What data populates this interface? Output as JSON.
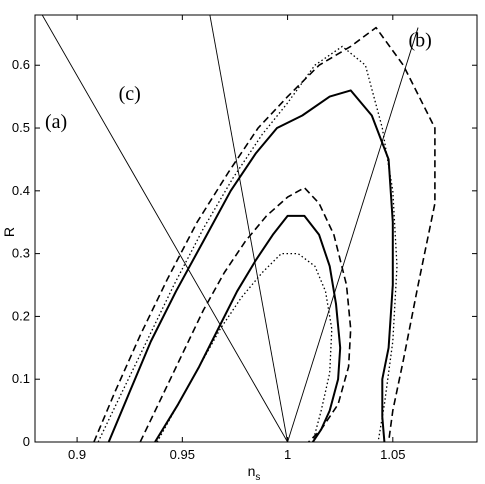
{
  "chart_data": {
    "type": "line",
    "xlabel": "n",
    "xlabel_sub": "s",
    "ylabel": "R",
    "xlim": [
      0.88,
      1.09
    ],
    "ylim": [
      0,
      0.68
    ],
    "xticks": [
      0.9,
      0.95,
      1,
      1.05
    ],
    "xtick_labels": [
      "0.9",
      "0.95",
      "1",
      "1.05"
    ],
    "yticks": [
      0,
      0.1,
      0.2,
      0.3,
      0.4,
      0.5,
      0.6
    ],
    "ytick_labels": [
      "0",
      "0.1",
      "0.2",
      "0.3",
      "0.4",
      "0.5",
      "0.6"
    ],
    "grid": false,
    "annotations": [
      {
        "text": "(a)",
        "x": 0.89,
        "y": 0.5
      },
      {
        "text": "(b)",
        "x": 1.063,
        "y": 0.63
      },
      {
        "text": "(c)",
        "x": 0.925,
        "y": 0.545
      }
    ],
    "lines": [
      {
        "id": "line-a",
        "x": [
          0.88,
          1.0
        ],
        "y": [
          0.7,
          0.0
        ]
      },
      {
        "id": "line-b",
        "x": [
          1.0,
          1.062
        ],
        "y": [
          0.0,
          0.66
        ]
      },
      {
        "id": "line-c",
        "x": [
          0.962,
          1.0
        ],
        "y": [
          0.7,
          0.0
        ]
      }
    ],
    "series": [
      {
        "id": "solid-inner",
        "style": "solid",
        "x": [
          0.937,
          0.948,
          0.958,
          0.967,
          0.976,
          0.985,
          0.993,
          1.0,
          1.008,
          1.015,
          1.02,
          1.023,
          1.025,
          1.024,
          1.02,
          1.016,
          1.012
        ],
        "y": [
          0.0,
          0.06,
          0.12,
          0.18,
          0.24,
          0.29,
          0.33,
          0.36,
          0.36,
          0.33,
          0.28,
          0.22,
          0.15,
          0.1,
          0.05,
          0.02,
          0.0
        ]
      },
      {
        "id": "solid-outer",
        "style": "solid",
        "x": [
          0.915,
          0.925,
          0.935,
          0.947,
          0.96,
          0.973,
          0.985,
          0.995,
          1.007,
          1.02,
          1.03,
          1.04,
          1.048,
          1.05,
          1.05,
          1.048,
          1.045,
          1.045,
          1.046
        ],
        "y": [
          0.0,
          0.08,
          0.16,
          0.24,
          0.32,
          0.4,
          0.46,
          0.5,
          0.52,
          0.55,
          0.56,
          0.52,
          0.45,
          0.35,
          0.25,
          0.15,
          0.1,
          0.04,
          0.0
        ]
      },
      {
        "id": "dashed-inner",
        "style": "dashed",
        "x": [
          0.93,
          0.94,
          0.95,
          0.96,
          0.97,
          0.98,
          0.99,
          1.0,
          1.008,
          1.015,
          1.022,
          1.028,
          1.03,
          1.029,
          1.024,
          1.016,
          1.01
        ],
        "y": [
          0.0,
          0.07,
          0.14,
          0.21,
          0.27,
          0.32,
          0.36,
          0.39,
          0.405,
          0.38,
          0.33,
          0.25,
          0.18,
          0.12,
          0.06,
          0.02,
          0.0
        ]
      },
      {
        "id": "dashed-outer",
        "style": "dashed",
        "x": [
          0.908,
          0.918,
          0.93,
          0.943,
          0.957,
          0.972,
          0.986,
          1.0,
          1.015,
          1.03,
          1.042,
          1.055,
          1.07,
          1.07,
          1.062,
          1.055,
          1.05,
          1.048
        ],
        "y": [
          0.0,
          0.08,
          0.17,
          0.26,
          0.35,
          0.43,
          0.5,
          0.55,
          0.6,
          0.63,
          0.66,
          0.6,
          0.5,
          0.38,
          0.25,
          0.13,
          0.05,
          0.0
        ]
      },
      {
        "id": "dotted-inner",
        "style": "dotted",
        "x": [
          0.938,
          0.948,
          0.958,
          0.968,
          0.978,
          0.988,
          0.997,
          1.005,
          1.013,
          1.018,
          1.021,
          1.02,
          1.016,
          1.012
        ],
        "y": [
          0.0,
          0.06,
          0.12,
          0.18,
          0.23,
          0.27,
          0.3,
          0.3,
          0.28,
          0.24,
          0.18,
          0.11,
          0.05,
          0.0
        ]
      },
      {
        "id": "dotted-outer",
        "style": "dotted",
        "x": [
          0.91,
          0.92,
          0.933,
          0.946,
          0.96,
          0.974,
          0.988,
          1.0,
          1.013,
          1.026,
          1.037,
          1.045,
          1.05,
          1.052,
          1.05,
          1.046,
          1.043
        ],
        "y": [
          0.0,
          0.07,
          0.16,
          0.25,
          0.34,
          0.42,
          0.49,
          0.54,
          0.6,
          0.63,
          0.6,
          0.5,
          0.4,
          0.28,
          0.16,
          0.06,
          0.0
        ]
      }
    ]
  }
}
